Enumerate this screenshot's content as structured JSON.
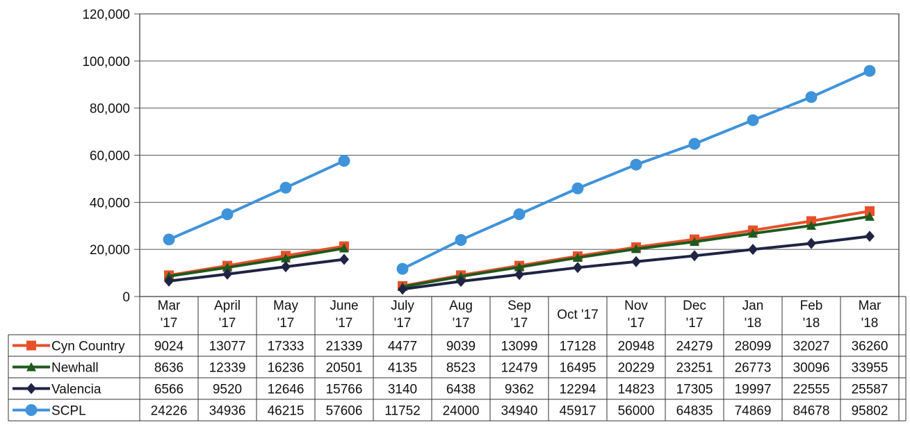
{
  "chart_data": {
    "type": "line",
    "title": "",
    "xlabel": "",
    "ylabel": "",
    "ylim": [
      0,
      120000
    ],
    "yticks": [
      0,
      20000,
      40000,
      60000,
      80000,
      100000,
      120000
    ],
    "ytick_labels": [
      "0",
      "20,000",
      "40,000",
      "60,000",
      "80,000",
      "100,000",
      "120,000"
    ],
    "grid": true,
    "legend": "data-table-left",
    "categories": [
      [
        "Mar",
        "'17"
      ],
      [
        "April",
        "'17"
      ],
      [
        "May",
        "'17"
      ],
      [
        "June",
        "'17"
      ],
      [
        "July",
        "'17"
      ],
      [
        "Aug",
        "'17"
      ],
      [
        "Sep",
        "'17"
      ],
      [
        "Oct '17"
      ],
      [
        "Nov",
        "'17"
      ],
      [
        "Dec",
        "'17"
      ],
      [
        "Jan",
        "'18"
      ],
      [
        "Feb",
        "'18"
      ],
      [
        "Mar",
        "'18"
      ]
    ],
    "segments": [
      [
        0,
        3
      ],
      [
        4,
        12
      ]
    ],
    "series": [
      {
        "name": "Cyn Country",
        "color": "#e8502a",
        "marker": "square",
        "values": [
          9024,
          13077,
          17333,
          21339,
          4477,
          9039,
          13099,
          17128,
          20948,
          24279,
          28099,
          32027,
          36260
        ]
      },
      {
        "name": "Newhall",
        "color": "#1e5a1e",
        "marker": "triangle",
        "values": [
          8636,
          12339,
          16236,
          20501,
          4135,
          8523,
          12479,
          16495,
          20229,
          23251,
          26773,
          30096,
          33955
        ]
      },
      {
        "name": "Valencia",
        "color": "#1f2444",
        "marker": "diamond",
        "values": [
          6566,
          9520,
          12646,
          15766,
          3140,
          6438,
          9362,
          12294,
          14823,
          17305,
          19997,
          22555,
          25587
        ]
      },
      {
        "name": "SCPL",
        "color": "#3f93db",
        "marker": "circle",
        "values": [
          24226,
          34936,
          46215,
          57606,
          11752,
          24000,
          34940,
          45917,
          56000,
          64835,
          74869,
          84678,
          95802
        ]
      }
    ]
  }
}
